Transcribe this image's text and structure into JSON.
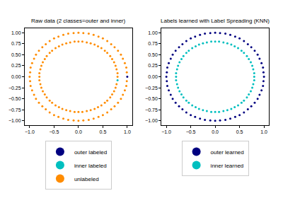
{
  "chart_data": [
    {
      "type": "scatter",
      "title": "Raw data (2 classes=outer and inner)",
      "xlim": [
        -1.1,
        1.1
      ],
      "ylim": [
        -1.1,
        1.1
      ],
      "xticks": [
        {
          "value": -1,
          "label": "−1.0"
        },
        {
          "value": -0.5,
          "label": "−0.5"
        },
        {
          "value": 0,
          "label": "0.0"
        },
        0.5,
        {
          "value": 1,
          "label": "1.0"
        }
      ],
      "yticks": [
        {
          "value": -1,
          "label": "−1.00"
        },
        {
          "value": -0.75,
          "label": "−0.75"
        },
        {
          "value": -0.5,
          "label": "−0.50"
        },
        {
          "value": -0.25,
          "label": "−0.25"
        },
        {
          "value": 0,
          "label": "0.00"
        },
        0.25,
        {
          "value": 0.5,
          "label": "0.50"
        },
        0.75,
        {
          "value": 1,
          "label": "1.00"
        }
      ],
      "grid": false,
      "legend": "bottom",
      "series": [
        {
          "name": "outer labeled",
          "color": "#000080",
          "marker": "circle",
          "x": [
            1
          ],
          "y": [
            0
          ]
        },
        {
          "name": "inner labeled",
          "color": "#00bfbf",
          "marker": "circle",
          "x": [
            0.8
          ],
          "y": [
            -0.08
          ]
        },
        {
          "name": "unlabeled",
          "color": "#ff8c00",
          "marker": "circle",
          "x": [
            0.99,
            0.98,
            0.95,
            0.91,
            0.87,
            0.81,
            0.74,
            0.67,
            0.59,
            0.5,
            0.41,
            0.31,
            0.21,
            0.1,
            0,
            -0.1,
            -0.21,
            -0.31,
            -0.41,
            -0.5,
            -0.59,
            -0.67,
            -0.74,
            -0.81,
            -0.87,
            -0.91,
            -0.95,
            -0.98,
            -0.99,
            -1,
            -0.99,
            -0.98,
            -0.95,
            -0.91,
            -0.87,
            -0.81,
            -0.74,
            -0.67,
            -0.59,
            -0.5,
            -0.41,
            -0.31,
            -0.21,
            -0.1,
            0,
            0.1,
            0.21,
            0.31,
            0.41,
            0.5,
            0.59,
            0.67,
            0.74,
            0.81,
            0.87,
            0.91,
            0.95,
            0.98,
            0.99,
            0.8,
            0.8,
            0.78,
            0.76,
            0.73,
            0.69,
            0.65,
            0.59,
            0.54,
            0.47,
            0.4,
            0.33,
            0.25,
            0.17,
            0.08,
            0,
            -0.08,
            -0.17,
            -0.25,
            -0.33,
            -0.4,
            -0.47,
            -0.54,
            -0.59,
            -0.65,
            -0.69,
            -0.73,
            -0.76,
            -0.78,
            -0.8,
            -0.8,
            -0.8,
            -0.78,
            -0.76,
            -0.73,
            -0.69,
            -0.65,
            -0.59,
            -0.54,
            -0.47,
            -0.4,
            -0.33,
            -0.25,
            -0.17,
            -0.08,
            0,
            0.08,
            0.17,
            0.25,
            0.33,
            0.4,
            0.47,
            0.54,
            0.59,
            0.65,
            0.69,
            0.73,
            0.76,
            0.78
          ],
          "y": [
            0.1,
            0.21,
            0.31,
            0.41,
            0.5,
            0.59,
            0.67,
            0.74,
            0.81,
            0.87,
            0.91,
            0.95,
            0.98,
            0.99,
            1,
            0.99,
            0.98,
            0.95,
            0.91,
            0.87,
            0.81,
            0.74,
            0.67,
            0.59,
            0.5,
            0.41,
            0.31,
            0.21,
            0.1,
            0,
            -0.1,
            -0.21,
            -0.31,
            -0.41,
            -0.5,
            -0.59,
            -0.67,
            -0.74,
            -0.81,
            -0.87,
            -0.91,
            -0.95,
            -0.98,
            -0.99,
            -1,
            -0.99,
            -0.98,
            -0.95,
            -0.91,
            -0.87,
            -0.81,
            -0.74,
            -0.67,
            -0.59,
            -0.5,
            -0.41,
            -0.31,
            -0.21,
            -0.1,
            0,
            0.08,
            0.17,
            0.25,
            0.33,
            0.4,
            0.47,
            0.54,
            0.59,
            0.65,
            0.69,
            0.73,
            0.76,
            0.78,
            0.8,
            0.8,
            0.8,
            0.78,
            0.76,
            0.73,
            0.69,
            0.65,
            0.59,
            0.54,
            0.47,
            0.4,
            0.33,
            0.25,
            0.17,
            0.08,
            0,
            -0.08,
            -0.17,
            -0.25,
            -0.33,
            -0.4,
            -0.47,
            -0.54,
            -0.59,
            -0.65,
            -0.69,
            -0.73,
            -0.76,
            -0.78,
            -0.8,
            -0.8,
            -0.8,
            -0.78,
            -0.76,
            -0.73,
            -0.69,
            -0.65,
            -0.59,
            -0.54,
            -0.47,
            -0.4,
            -0.33,
            -0.25,
            -0.17
          ]
        }
      ]
    },
    {
      "type": "scatter",
      "title": "Labels learned with Label Spreading (KNN)",
      "xlim": [
        -1.1,
        1.1
      ],
      "ylim": [
        -1.1,
        1.1
      ],
      "xticks": [
        {
          "value": -1,
          "label": "−1.0"
        },
        {
          "value": -0.5,
          "label": "−0.5"
        },
        {
          "value": 0,
          "label": "0.0"
        },
        0.5,
        {
          "value": 1,
          "label": "1.0"
        }
      ],
      "yticks": [
        {
          "value": -1,
          "label": "−1.00"
        },
        {
          "value": -0.75,
          "label": "−0.75"
        },
        {
          "value": -0.5,
          "label": "−0.50"
        },
        {
          "value": -0.25,
          "label": "−0.25"
        },
        {
          "value": 0,
          "label": "0.00"
        },
        0.25,
        {
          "value": 0.5,
          "label": "0.50"
        },
        0.75,
        {
          "value": 1,
          "label": "1.00"
        }
      ],
      "grid": false,
      "legend": "bottom",
      "series": [
        {
          "name": "outer learned",
          "color": "#000080",
          "marker": "circle",
          "x": [
            1,
            0.99,
            0.98,
            0.95,
            0.91,
            0.87,
            0.81,
            0.74,
            0.67,
            0.59,
            0.5,
            0.41,
            0.31,
            0.21,
            0.1,
            0,
            -0.1,
            -0.21,
            -0.31,
            -0.41,
            -0.5,
            -0.59,
            -0.67,
            -0.74,
            -0.81,
            -0.87,
            -0.91,
            -0.95,
            -0.98,
            -0.99,
            -1,
            -0.99,
            -0.98,
            -0.95,
            -0.91,
            -0.87,
            -0.81,
            -0.74,
            -0.67,
            -0.59,
            -0.5,
            -0.41,
            -0.31,
            -0.21,
            -0.1,
            0,
            0.1,
            0.21,
            0.31,
            0.41,
            0.5,
            0.59,
            0.67,
            0.74,
            0.81,
            0.87,
            0.91,
            0.95,
            0.98,
            0.99
          ],
          "y": [
            0,
            0.1,
            0.21,
            0.31,
            0.41,
            0.5,
            0.59,
            0.67,
            0.74,
            0.81,
            0.87,
            0.91,
            0.95,
            0.98,
            0.99,
            1,
            0.99,
            0.98,
            0.95,
            0.91,
            0.87,
            0.81,
            0.74,
            0.67,
            0.59,
            0.5,
            0.41,
            0.31,
            0.21,
            0.1,
            0,
            -0.1,
            -0.21,
            -0.31,
            -0.41,
            -0.5,
            -0.59,
            -0.67,
            -0.74,
            -0.81,
            -0.87,
            -0.91,
            -0.95,
            -0.98,
            -0.99,
            -1,
            -0.99,
            -0.98,
            -0.95,
            -0.91,
            -0.87,
            -0.81,
            -0.74,
            -0.67,
            -0.59,
            -0.5,
            -0.41,
            -0.31,
            -0.21,
            -0.1
          ]
        },
        {
          "name": "inner learned",
          "color": "#00bfbf",
          "marker": "circle",
          "x": [
            0.8,
            0.8,
            0.78,
            0.76,
            0.73,
            0.69,
            0.65,
            0.59,
            0.54,
            0.47,
            0.4,
            0.33,
            0.25,
            0.17,
            0.08,
            0,
            -0.08,
            -0.17,
            -0.25,
            -0.33,
            -0.4,
            -0.47,
            -0.54,
            -0.59,
            -0.65,
            -0.69,
            -0.73,
            -0.76,
            -0.78,
            -0.8,
            -0.8,
            -0.8,
            -0.78,
            -0.76,
            -0.73,
            -0.69,
            -0.65,
            -0.59,
            -0.54,
            -0.47,
            -0.4,
            -0.33,
            -0.25,
            -0.17,
            -0.08,
            0,
            0.08,
            0.17,
            0.25,
            0.33,
            0.4,
            0.47,
            0.54,
            0.59,
            0.65,
            0.69,
            0.73,
            0.76,
            0.78,
            0.8
          ],
          "y": [
            0,
            0.08,
            0.17,
            0.25,
            0.33,
            0.4,
            0.47,
            0.54,
            0.59,
            0.65,
            0.69,
            0.73,
            0.76,
            0.78,
            0.8,
            0.8,
            0.8,
            0.78,
            0.76,
            0.73,
            0.69,
            0.65,
            0.59,
            0.54,
            0.47,
            0.4,
            0.33,
            0.25,
            0.17,
            0.08,
            0,
            -0.08,
            -0.17,
            -0.25,
            -0.33,
            -0.4,
            -0.47,
            -0.54,
            -0.59,
            -0.65,
            -0.69,
            -0.73,
            -0.76,
            -0.78,
            -0.8,
            -0.8,
            -0.8,
            -0.78,
            -0.76,
            -0.73,
            -0.69,
            -0.65,
            -0.59,
            -0.54,
            -0.47,
            -0.4,
            -0.33,
            -0.25,
            -0.17,
            -0.08
          ]
        }
      ]
    }
  ]
}
